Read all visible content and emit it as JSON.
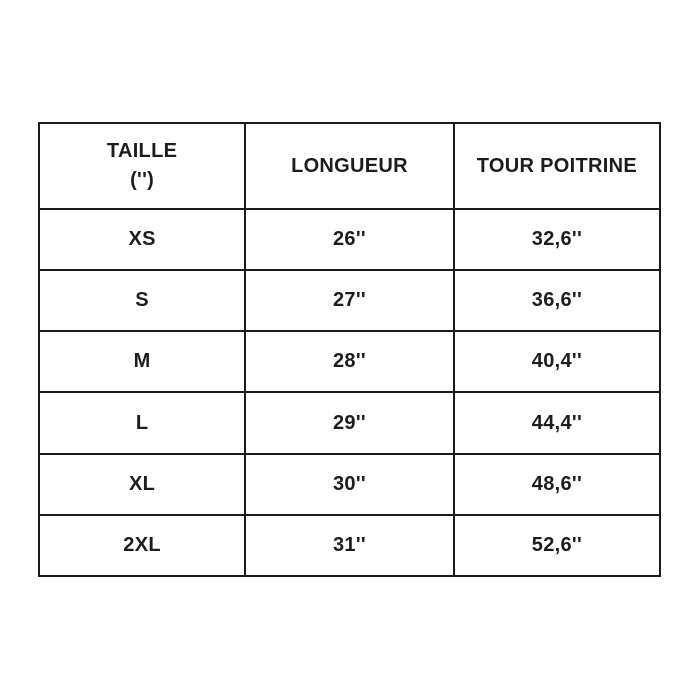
{
  "chart_data": {
    "type": "table",
    "title": "",
    "columns": [
      "TAILLE ('')",
      "LONGUEUR",
      "TOUR POITRINE"
    ],
    "rows": [
      [
        "XS",
        "26''",
        "32,6''"
      ],
      [
        "S",
        "27''",
        "36,6''"
      ],
      [
        "M",
        "28''",
        "40,4''"
      ],
      [
        "L",
        "29''",
        "44,4''"
      ],
      [
        "XL",
        "30''",
        "48,6''"
      ],
      [
        "2XL",
        "31''",
        "52,6''"
      ]
    ]
  },
  "table": {
    "headers": {
      "size_line1": "TAILLE",
      "size_line2": "('')",
      "length": "LONGUEUR",
      "chest": "TOUR POITRINE"
    },
    "rows": [
      {
        "size": "XS",
        "length": "26''",
        "chest": "32,6''"
      },
      {
        "size": "S",
        "length": "27''",
        "chest": "36,6''"
      },
      {
        "size": "M",
        "length": "28''",
        "chest": "40,4''"
      },
      {
        "size": "L",
        "length": "29''",
        "chest": "44,4''"
      },
      {
        "size": "XL",
        "length": "30''",
        "chest": "48,6''"
      },
      {
        "size": "2XL",
        "length": "31''",
        "chest": "52,6''"
      }
    ]
  },
  "colors": {
    "border": "#1b1b1b",
    "text": "#1d1d1d",
    "background": "#ffffff"
  }
}
